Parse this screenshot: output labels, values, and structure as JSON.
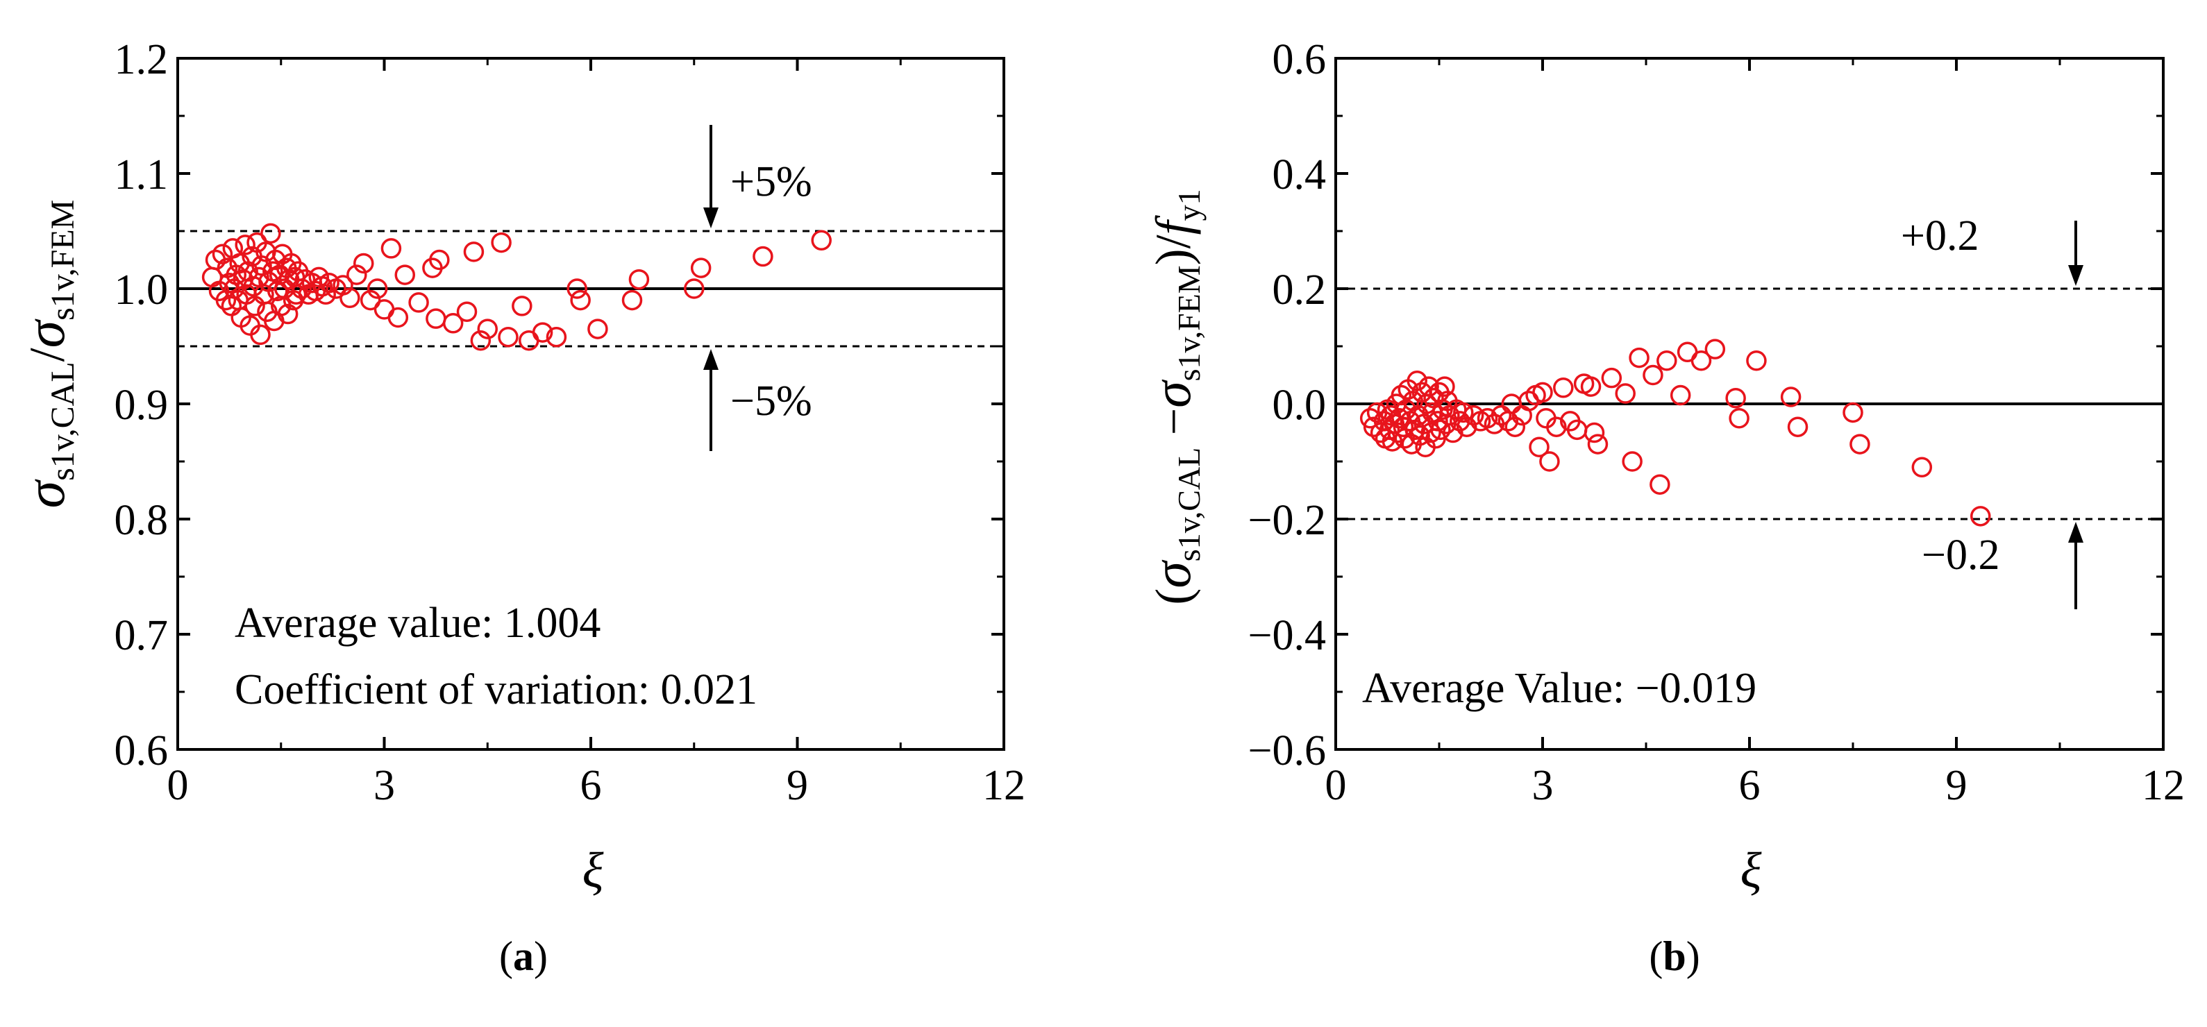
{
  "chart_data": [
    {
      "type": "scatter",
      "panel": "a",
      "caption": {
        "open": "(",
        "letter": "a",
        "close": ")"
      },
      "xlabel": "ξ",
      "ylabel": {
        "main": "σ",
        "sub1": "s1v,CAL",
        "slash": "/",
        "main2": "σ",
        "sub2": "s1v,FEM"
      },
      "xlim": [
        0,
        12
      ],
      "ylim": [
        0.6,
        1.2
      ],
      "xticks": [
        0,
        3,
        6,
        9,
        12
      ],
      "xtick_labels": [
        "0",
        "3",
        "6",
        "9",
        "12"
      ],
      "yticks": [
        0.6,
        0.7,
        0.8,
        0.9,
        1.0,
        1.1,
        1.2
      ],
      "ytick_labels": [
        "0.6",
        "0.7",
        "0.8",
        "0.9",
        "1.0",
        "1.1",
        "1.2"
      ],
      "reference_line": 1.0,
      "bounds": [
        {
          "value": 1.05,
          "label": "+5%"
        },
        {
          "value": 0.95,
          "label": "−5%"
        }
      ],
      "annotations": [
        "Average value: 1.004",
        "Coefficient of variation: 0.021"
      ],
      "marker_color": "#e8141c",
      "points": [
        [
          0.5,
          1.01
        ],
        [
          0.55,
          1.025
        ],
        [
          0.6,
          0.998
        ],
        [
          0.65,
          1.03
        ],
        [
          0.7,
          0.99
        ],
        [
          0.72,
          1.018
        ],
        [
          0.75,
          1.005
        ],
        [
          0.78,
          0.985
        ],
        [
          0.8,
          1.035
        ],
        [
          0.82,
          1.0
        ],
        [
          0.85,
          1.012
        ],
        [
          0.88,
          0.99
        ],
        [
          0.9,
          1.022
        ],
        [
          0.92,
          0.975
        ],
        [
          0.95,
          1.008
        ],
        [
          0.98,
          1.038
        ],
        [
          1.0,
          0.995
        ],
        [
          1.02,
          1.015
        ],
        [
          1.05,
          0.968
        ],
        [
          1.08,
          1.028
        ],
        [
          1.1,
          1.002
        ],
        [
          1.12,
          0.985
        ],
        [
          1.15,
          1.04
        ],
        [
          1.18,
          1.01
        ],
        [
          1.2,
          0.96
        ],
        [
          1.22,
          1.02
        ],
        [
          1.25,
          0.995
        ],
        [
          1.28,
          1.032
        ],
        [
          1.3,
          0.98
        ],
        [
          1.32,
          1.006
        ],
        [
          1.35,
          1.048
        ],
        [
          1.38,
          1.015
        ],
        [
          1.4,
          0.972
        ],
        [
          1.42,
          1.025
        ],
        [
          1.45,
          0.998
        ],
        [
          1.48,
          1.012
        ],
        [
          1.5,
          0.985
        ],
        [
          1.52,
          1.03
        ],
        [
          1.55,
          1.0
        ],
        [
          1.58,
          1.018
        ],
        [
          1.6,
          0.978
        ],
        [
          1.62,
          1.008
        ],
        [
          1.65,
          1.022
        ],
        [
          1.68,
          0.99
        ],
        [
          1.7,
          1.01
        ],
        [
          1.72,
          0.995
        ],
        [
          1.75,
          1.015
        ],
        [
          1.8,
          1.0
        ],
        [
          1.85,
          1.008
        ],
        [
          1.9,
          0.995
        ],
        [
          1.95,
          1.005
        ],
        [
          2.0,
          0.998
        ],
        [
          2.05,
          1.01
        ],
        [
          2.1,
          1.002
        ],
        [
          2.15,
          0.995
        ],
        [
          2.2,
          1.005
        ],
        [
          2.3,
          1.0
        ],
        [
          2.4,
          1.003
        ],
        [
          2.5,
          0.992
        ],
        [
          2.6,
          1.012
        ],
        [
          2.7,
          1.022
        ],
        [
          2.8,
          0.99
        ],
        [
          2.9,
          1.0
        ],
        [
          3.0,
          0.982
        ],
        [
          3.1,
          1.035
        ],
        [
          3.2,
          0.975
        ],
        [
          3.3,
          1.012
        ],
        [
          3.5,
          0.988
        ],
        [
          3.7,
          1.018
        ],
        [
          3.75,
          0.974
        ],
        [
          3.8,
          1.025
        ],
        [
          4.0,
          0.97
        ],
        [
          4.2,
          0.98
        ],
        [
          4.3,
          1.032
        ],
        [
          4.4,
          0.955
        ],
        [
          4.5,
          0.965
        ],
        [
          4.7,
          1.04
        ],
        [
          4.8,
          0.958
        ],
        [
          5.0,
          0.985
        ],
        [
          5.1,
          0.955
        ],
        [
          5.3,
          0.962
        ],
        [
          5.5,
          0.958
        ],
        [
          5.8,
          1.0
        ],
        [
          5.85,
          0.99
        ],
        [
          6.1,
          0.965
        ],
        [
          6.6,
          0.99
        ],
        [
          6.7,
          1.008
        ],
        [
          7.5,
          1.0
        ],
        [
          7.6,
          1.018
        ],
        [
          8.5,
          1.028
        ],
        [
          9.35,
          1.042
        ]
      ]
    },
    {
      "type": "scatter",
      "panel": "b",
      "caption": {
        "open": "(",
        "letter": "b",
        "close": ")"
      },
      "xlabel": "ξ",
      "ylabel": {
        "open": "(",
        "main": "σ",
        "sub1": "s1v,CAL",
        "minus": " −",
        "main2": "σ",
        "sub2": "s1v,FEM",
        "close": ")/",
        "f": "f",
        "fsub": "y1"
      },
      "xlim": [
        0,
        12
      ],
      "ylim": [
        -0.6,
        0.6
      ],
      "xticks": [
        0,
        3,
        6,
        9,
        12
      ],
      "xtick_labels": [
        "0",
        "3",
        "6",
        "9",
        "12"
      ],
      "yticks": [
        -0.6,
        -0.4,
        -0.2,
        0.0,
        0.2,
        0.4,
        0.6
      ],
      "ytick_labels": [
        "−0.6",
        "−0.4",
        "−0.2",
        "0.0",
        "0.2",
        "0.4",
        "0.6"
      ],
      "reference_line": 0.0,
      "bounds": [
        {
          "value": 0.2,
          "label": "+0.2"
        },
        {
          "value": -0.2,
          "label": "−0.2"
        }
      ],
      "annotations": [
        "Average Value: −0.019"
      ],
      "marker_color": "#e8141c",
      "points": [
        [
          0.5,
          -0.025
        ],
        [
          0.55,
          -0.04
        ],
        [
          0.6,
          -0.015
        ],
        [
          0.65,
          -0.05
        ],
        [
          0.7,
          -0.03
        ],
        [
          0.72,
          -0.06
        ],
        [
          0.75,
          -0.01
        ],
        [
          0.78,
          -0.045
        ],
        [
          0.8,
          -0.02
        ],
        [
          0.82,
          -0.065
        ],
        [
          0.85,
          -0.035
        ],
        [
          0.88,
          0.0
        ],
        [
          0.9,
          -0.05
        ],
        [
          0.92,
          -0.025
        ],
        [
          0.95,
          0.015
        ],
        [
          0.98,
          -0.04
        ],
        [
          1.0,
          -0.06
        ],
        [
          1.02,
          -0.01
        ],
        [
          1.05,
          0.025
        ],
        [
          1.08,
          -0.03
        ],
        [
          1.1,
          -0.07
        ],
        [
          1.12,
          0.005
        ],
        [
          1.15,
          -0.045
        ],
        [
          1.18,
          0.04
        ],
        [
          1.2,
          -0.02
        ],
        [
          1.22,
          -0.055
        ],
        [
          1.25,
          0.02
        ],
        [
          1.28,
          -0.035
        ],
        [
          1.3,
          -0.075
        ],
        [
          1.32,
          0.0
        ],
        [
          1.35,
          0.03
        ],
        [
          1.38,
          -0.05
        ],
        [
          1.4,
          -0.015
        ],
        [
          1.42,
          0.01
        ],
        [
          1.45,
          -0.06
        ],
        [
          1.48,
          -0.03
        ],
        [
          1.5,
          0.02
        ],
        [
          1.52,
          -0.045
        ],
        [
          1.55,
          -0.01
        ],
        [
          1.58,
          0.03
        ],
        [
          1.6,
          -0.035
        ],
        [
          1.62,
          0.005
        ],
        [
          1.65,
          -0.02
        ],
        [
          1.7,
          -0.05
        ],
        [
          1.75,
          -0.01
        ],
        [
          1.8,
          -0.03
        ],
        [
          1.85,
          -0.015
        ],
        [
          1.9,
          -0.04
        ],
        [
          2.0,
          -0.02
        ],
        [
          2.1,
          -0.03
        ],
        [
          2.2,
          -0.025
        ],
        [
          2.3,
          -0.035
        ],
        [
          2.4,
          -0.02
        ],
        [
          2.5,
          -0.03
        ],
        [
          2.55,
          0.0
        ],
        [
          2.6,
          -0.04
        ],
        [
          2.7,
          -0.02
        ],
        [
          2.8,
          0.005
        ],
        [
          2.9,
          0.015
        ],
        [
          2.95,
          -0.075
        ],
        [
          3.0,
          0.02
        ],
        [
          3.05,
          -0.025
        ],
        [
          3.1,
          -0.1
        ],
        [
          3.2,
          -0.04
        ],
        [
          3.3,
          0.028
        ],
        [
          3.4,
          -0.03
        ],
        [
          3.5,
          -0.045
        ],
        [
          3.6,
          0.035
        ],
        [
          3.7,
          0.03
        ],
        [
          3.75,
          -0.05
        ],
        [
          3.8,
          -0.07
        ],
        [
          4.0,
          0.045
        ],
        [
          4.2,
          0.018
        ],
        [
          4.3,
          -0.1
        ],
        [
          4.4,
          0.08
        ],
        [
          4.6,
          0.05
        ],
        [
          4.7,
          -0.14
        ],
        [
          4.8,
          0.075
        ],
        [
          5.0,
          0.015
        ],
        [
          5.1,
          0.09
        ],
        [
          5.3,
          0.075
        ],
        [
          5.5,
          0.095
        ],
        [
          5.8,
          0.01
        ],
        [
          5.85,
          -0.025
        ],
        [
          6.1,
          0.075
        ],
        [
          6.6,
          0.012
        ],
        [
          6.7,
          -0.04
        ],
        [
          7.5,
          -0.015
        ],
        [
          7.6,
          -0.07
        ],
        [
          8.5,
          -0.11
        ],
        [
          9.35,
          -0.195
        ]
      ]
    }
  ]
}
